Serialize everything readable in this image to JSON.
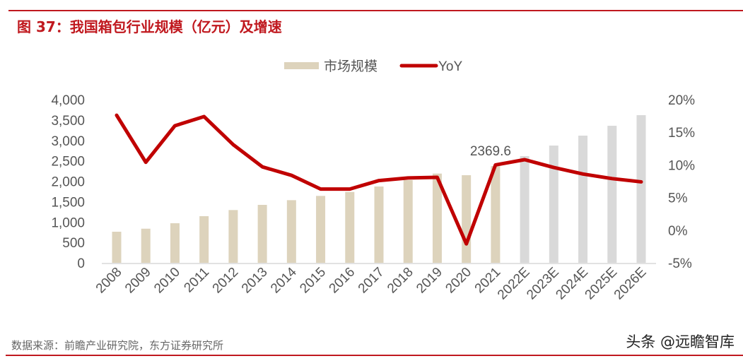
{
  "header": {
    "title": "图 37：我国箱包行业规模（亿元）及增速"
  },
  "footer": {
    "source": "数据来源：前瞻产业研究院，东方证券研究所",
    "watermark": "头条 @远瞻智库"
  },
  "colors": {
    "accent": "#c0191f",
    "bar_actual": "#ddd3bc",
    "bar_forecast": "#d9d9d9",
    "line": "#c00000"
  },
  "chart_data": {
    "type": "bar+line",
    "title": "图 37：我国箱包行业规模（亿元）及增速",
    "categories": [
      "2008",
      "2009",
      "2010",
      "2011",
      "2012",
      "2013",
      "2014",
      "2015",
      "2016",
      "2017",
      "2018",
      "2019",
      "2020",
      "2021",
      "2022E",
      "2023E",
      "2024E",
      "2025E",
      "2026E"
    ],
    "series": [
      {
        "name": "市场规模",
        "type": "bar",
        "axis": "left",
        "values": [
          762,
          836,
          970,
          1143,
          1293,
          1420,
          1535,
          1640,
          1737,
          1870,
          2026,
          2187,
          2147,
          2369.6,
          2615,
          2874,
          3117,
          3359,
          3619
        ]
      },
      {
        "name": "YoY",
        "type": "line",
        "axis": "right",
        "values": [
          17.6,
          10.4,
          16.0,
          17.4,
          13.1,
          9.7,
          8.4,
          6.3,
          6.3,
          7.6,
          8.0,
          8.1,
          -2.1,
          10.0,
          10.8,
          9.6,
          8.6,
          7.9,
          7.4
        ]
      }
    ],
    "data_labels": [
      {
        "category": "2021",
        "text": "2369.6"
      }
    ],
    "left_axis": {
      "range": [
        0,
        4000
      ],
      "ticks": [
        "0",
        "500",
        "1,000",
        "1,500",
        "2,000",
        "2,500",
        "3,000",
        "3,500",
        "4,000"
      ]
    },
    "right_axis": {
      "range": [
        -5,
        20
      ],
      "ticks": [
        "-5%",
        "0%",
        "5%",
        "10%",
        "15%",
        "20%"
      ]
    },
    "grid": false,
    "legend": "top-center"
  }
}
